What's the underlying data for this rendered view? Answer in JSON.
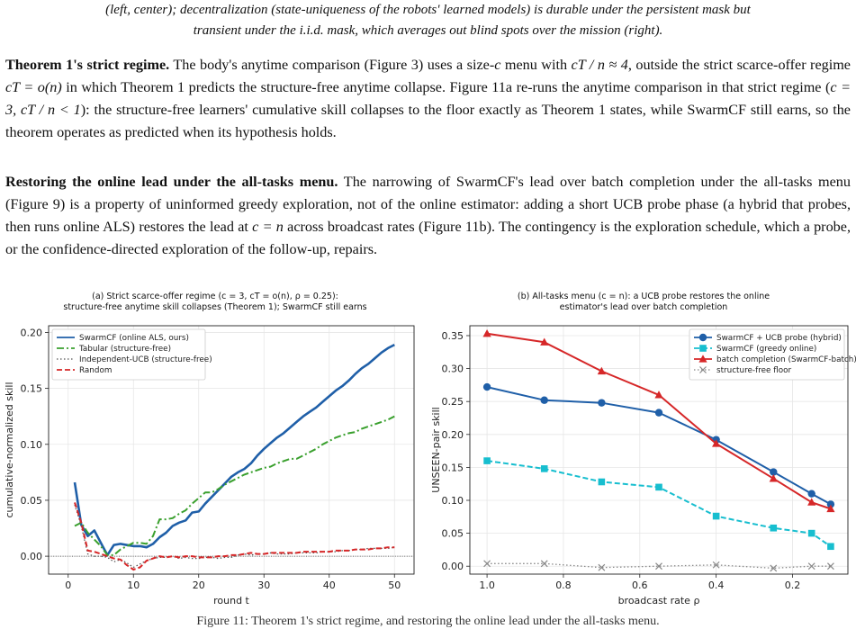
{
  "top_caption": {
    "line1": "(left, center); decentralization (state-uniqueness of the robots' learned models) is durable under the persistent mask but",
    "line2": "transient under the i.i.d. mask, which averages out blind spots over the mission (right)."
  },
  "para1": {
    "heading": "Theorem 1's strict regime.",
    "t1": " The body's anytime comparison (Figure 3) uses a size-",
    "m1": "c",
    "t2": " menu with ",
    "m2": "cT / n ≈ 4",
    "t3": ", outside the strict scarce-offer regime ",
    "m3": "cT = o(n)",
    "t4": " in which Theorem 1 predicts the structure-free anytime collapse. Figure 11a re-runs the anytime comparison in that strict regime (",
    "m4": "c = 3, cT / n < 1",
    "t5": "): the structure-free learners' cumulative skill collapses to the floor exactly as Theorem 1 states, while SwarmCF still earns, so the theorem operates as predicted when its hypothesis holds."
  },
  "para2": {
    "heading": "Restoring the online lead under the all-tasks menu.",
    "t1": " The narrowing of SwarmCF's lead over batch completion under the all-tasks menu (Figure 9) is a property of uninformed greedy exploration, not of the online estimator: adding a short UCB probe phase (a hybrid that probes, then runs online ALS) restores the lead at ",
    "m1": "c = n",
    "t2": " across broadcast rates (Figure 11b). The contingency is the exploration schedule, which a probe, or the confidence-directed exploration of the follow-up, repairs."
  },
  "chart_data": [
    {
      "type": "line",
      "title_line1": "(a) Strict scarce-offer regime (c = 3, cT = o(n), ρ = 0.25):",
      "title_line2": "structure-free anytime skill collapses (Theorem 1); SwarmCF still earns",
      "xlabel": "round  t",
      "ylabel": "cumulative-normalized skill",
      "xlim": [
        -3,
        53
      ],
      "ylim": [
        -0.016,
        0.206
      ],
      "xticks": [
        0,
        10,
        20,
        30,
        40,
        50
      ],
      "yticks": [
        0.0,
        0.05,
        0.1,
        0.15,
        0.2
      ],
      "ytick_labels": [
        "0.00",
        "0.05",
        "0.10",
        "0.15",
        "0.20"
      ],
      "hline": 0,
      "grid": true,
      "legend_position": "top-left",
      "series": [
        {
          "name": "SwarmCF (online ALS, ours)",
          "color": "#1f5fa8",
          "style": "solid",
          "x": [
            1,
            2,
            3,
            4,
            5,
            6,
            7,
            8,
            9,
            10,
            11,
            12,
            13,
            14,
            15,
            16,
            17,
            18,
            19,
            20,
            21,
            22,
            23,
            24,
            25,
            26,
            27,
            28,
            29,
            30,
            31,
            32,
            33,
            34,
            35,
            36,
            37,
            38,
            39,
            40,
            41,
            42,
            43,
            44,
            45,
            46,
            47,
            48,
            49,
            50
          ],
          "values": [
            0.066,
            0.028,
            0.018,
            0.023,
            0.012,
            0.001,
            0.01,
            0.011,
            0.01,
            0.009,
            0.009,
            0.008,
            0.011,
            0.017,
            0.021,
            0.027,
            0.03,
            0.032,
            0.039,
            0.04,
            0.047,
            0.053,
            0.059,
            0.065,
            0.071,
            0.075,
            0.078,
            0.083,
            0.09,
            0.096,
            0.101,
            0.106,
            0.11,
            0.115,
            0.12,
            0.125,
            0.129,
            0.133,
            0.138,
            0.143,
            0.148,
            0.152,
            0.157,
            0.163,
            0.168,
            0.172,
            0.177,
            0.182,
            0.186,
            0.189
          ]
        },
        {
          "name": "Tabular (structure-free)",
          "color": "#3aa02e",
          "style": "dashdot",
          "x": [
            1,
            2,
            3,
            4,
            5,
            6,
            7,
            8,
            9,
            10,
            11,
            12,
            13,
            14,
            15,
            16,
            17,
            18,
            19,
            20,
            21,
            22,
            23,
            24,
            25,
            26,
            27,
            28,
            29,
            30,
            31,
            32,
            33,
            34,
            35,
            36,
            37,
            38,
            39,
            40,
            41,
            42,
            43,
            44,
            45,
            46,
            47,
            48,
            49,
            50
          ],
          "values": [
            0.027,
            0.03,
            0.021,
            0.015,
            0.009,
            0.001,
            0.001,
            0.006,
            0.009,
            0.012,
            0.012,
            0.011,
            0.018,
            0.033,
            0.033,
            0.034,
            0.038,
            0.041,
            0.047,
            0.052,
            0.057,
            0.057,
            0.06,
            0.064,
            0.067,
            0.07,
            0.073,
            0.075,
            0.077,
            0.079,
            0.08,
            0.083,
            0.085,
            0.087,
            0.087,
            0.09,
            0.093,
            0.096,
            0.1,
            0.103,
            0.106,
            0.108,
            0.11,
            0.111,
            0.114,
            0.116,
            0.118,
            0.12,
            0.122,
            0.125
          ]
        },
        {
          "name": "Independent-UCB (structure-free)",
          "color": "#555555",
          "style": "dotted",
          "x": [
            1,
            2,
            3,
            4,
            5,
            6,
            7,
            8,
            9,
            10,
            11,
            12,
            13,
            14,
            15,
            16,
            17,
            18,
            19,
            20,
            21,
            22,
            23,
            24,
            25,
            26,
            27,
            28,
            29,
            30,
            31,
            32,
            33,
            34,
            35,
            36,
            37,
            38,
            39,
            40,
            41,
            42,
            43,
            44,
            45,
            46,
            47,
            48,
            49,
            50
          ],
          "values": [
            0.046,
            0.027,
            0.002,
            0.0,
            0.0,
            -0.001,
            -0.005,
            -0.003,
            -0.006,
            -0.01,
            -0.007,
            -0.004,
            -0.002,
            -0.001,
            -0.001,
            0.0,
            -0.002,
            -0.001,
            -0.002,
            -0.002,
            -0.001,
            -0.001,
            -0.002,
            -0.001,
            -0.001,
            0.001,
            0.002,
            0.001,
            0.002,
            0.002,
            0.003,
            0.002,
            0.002,
            0.002,
            0.003,
            0.003,
            0.003,
            0.003,
            0.004,
            0.004,
            0.004,
            0.005,
            0.005,
            0.006,
            0.006,
            0.007,
            0.007,
            0.007,
            0.007,
            0.008
          ]
        },
        {
          "name": "Random",
          "color": "#d62728",
          "style": "dashed",
          "x": [
            1,
            2,
            3,
            4,
            5,
            6,
            7,
            8,
            9,
            10,
            11,
            12,
            13,
            14,
            15,
            16,
            17,
            18,
            19,
            20,
            21,
            22,
            23,
            24,
            25,
            26,
            27,
            28,
            29,
            30,
            31,
            32,
            33,
            34,
            35,
            36,
            37,
            38,
            39,
            40,
            41,
            42,
            43,
            44,
            45,
            46,
            47,
            48,
            49,
            50
          ],
          "values": [
            0.048,
            0.03,
            0.005,
            0.004,
            0.002,
            0.0,
            -0.002,
            -0.003,
            -0.008,
            -0.012,
            -0.01,
            -0.004,
            -0.002,
            0.0,
            -0.001,
            0.0,
            -0.001,
            0.0,
            0.0,
            -0.001,
            -0.001,
            -0.001,
            0.0,
            0.0,
            0.001,
            0.001,
            0.002,
            0.003,
            0.002,
            0.002,
            0.003,
            0.003,
            0.003,
            0.003,
            0.003,
            0.004,
            0.004,
            0.004,
            0.004,
            0.004,
            0.005,
            0.005,
            0.005,
            0.006,
            0.006,
            0.006,
            0.007,
            0.007,
            0.008,
            0.008
          ]
        }
      ]
    },
    {
      "type": "line",
      "title_line1": "(b) All-tasks menu (c = n): a UCB probe restores the online",
      "title_line2": "estimator's lead over batch completion",
      "xlabel": "broadcast rate  ρ",
      "ylabel": "UNSEEN-pair skill",
      "xlim": [
        1.045,
        0.055
      ],
      "ylim": [
        -0.012,
        0.365
      ],
      "xticks": [
        1.0,
        0.8,
        0.6,
        0.4,
        0.2
      ],
      "xtick_labels": [
        "1.0",
        "0.8",
        "0.6",
        "0.4",
        "0.2"
      ],
      "yticks": [
        0.0,
        0.05,
        0.1,
        0.15,
        0.2,
        0.25,
        0.3,
        0.35
      ],
      "ytick_labels": [
        "0.00",
        "0.05",
        "0.10",
        "0.15",
        "0.20",
        "0.25",
        "0.30",
        "0.35"
      ],
      "grid": true,
      "legend_position": "top-right",
      "x": [
        1.0,
        0.85,
        0.7,
        0.55,
        0.4,
        0.25,
        0.15,
        0.1
      ],
      "series": [
        {
          "name": "SwarmCF + UCB probe (hybrid)",
          "color": "#1f5fa8",
          "style": "solid",
          "marker": "circle",
          "values": [
            0.272,
            0.252,
            0.248,
            0.233,
            0.192,
            0.143,
            0.11,
            0.094
          ]
        },
        {
          "name": "SwarmCF (greedy online)",
          "color": "#17becf",
          "style": "dashed",
          "marker": "square",
          "values": [
            0.16,
            0.148,
            0.128,
            0.12,
            0.076,
            0.058,
            0.05,
            0.03
          ]
        },
        {
          "name": "batch completion (SwarmCF-batch)",
          "color": "#d62728",
          "style": "solid",
          "marker": "triangle",
          "values": [
            0.353,
            0.34,
            0.296,
            0.26,
            0.186,
            0.133,
            0.097,
            0.087
          ]
        },
        {
          "name": "structure-free floor",
          "color": "#888888",
          "style": "dotted",
          "marker": "x",
          "values": [
            0.004,
            0.004,
            -0.002,
            0.0,
            0.002,
            -0.003,
            0.0,
            0.0
          ]
        }
      ]
    }
  ],
  "bottom_caption_fragment": "Figure 11: Theorem 1's strict regime, and restoring the online lead under the all-tasks menu."
}
